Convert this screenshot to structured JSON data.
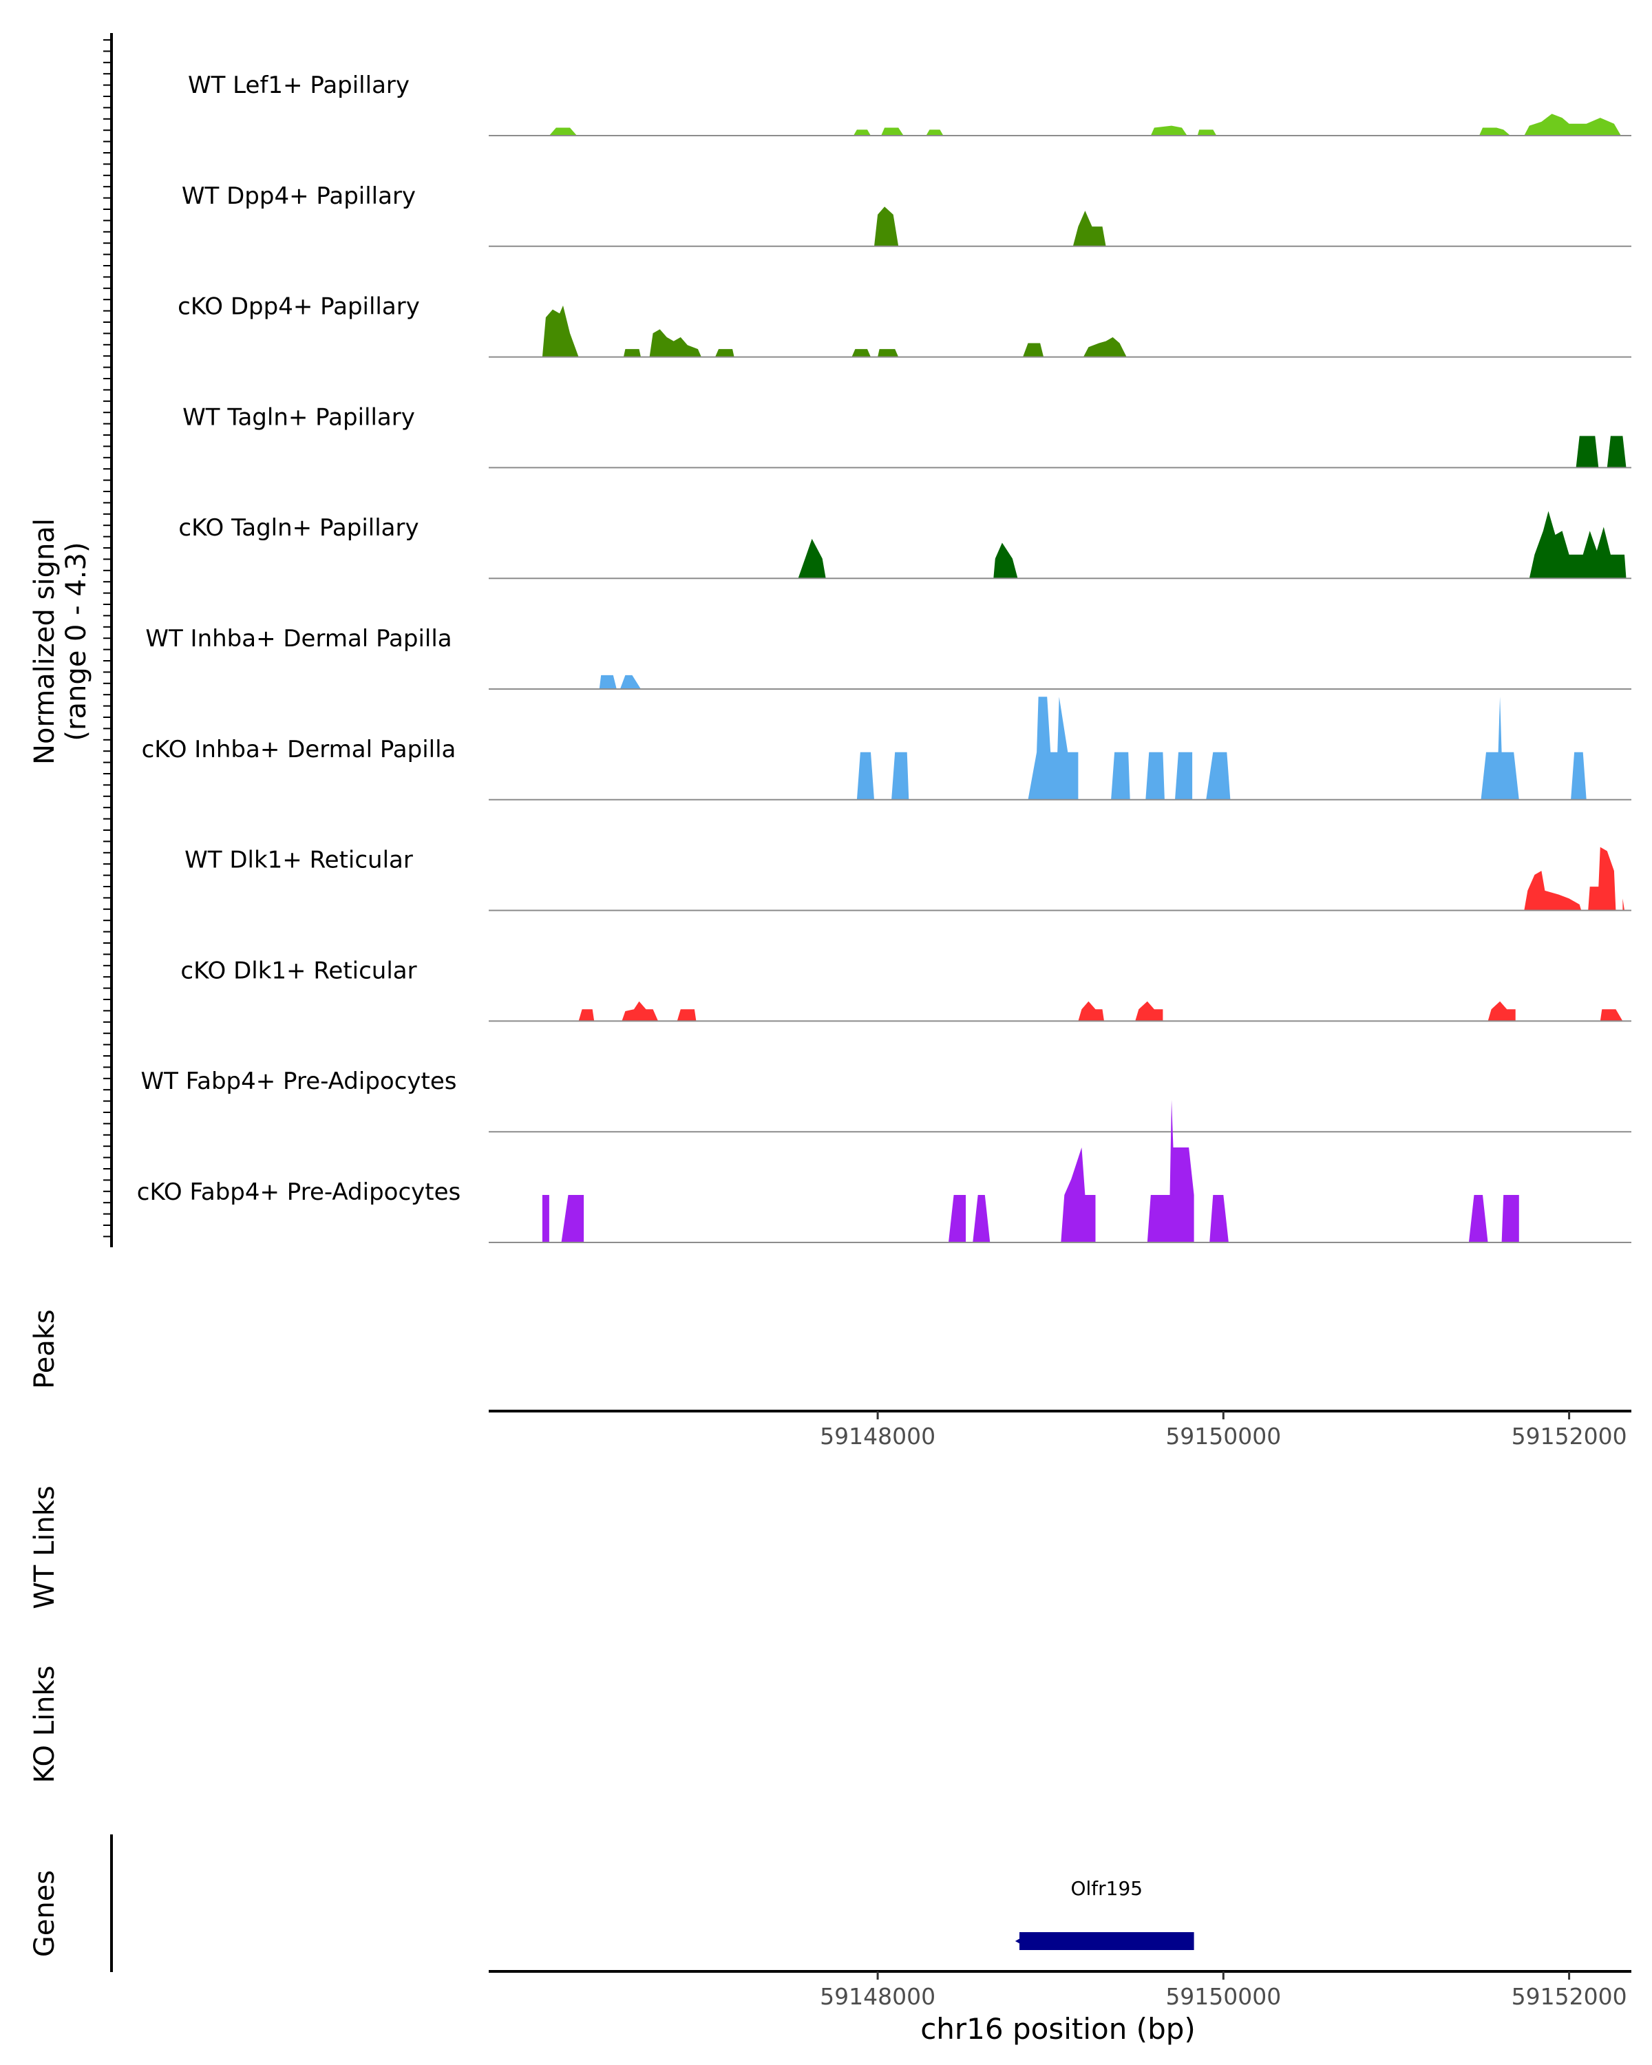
{
  "chart_data": {
    "type": "area",
    "title": "",
    "region": {
      "chrom": "chr16",
      "start": 59145750,
      "end": 59152360
    },
    "signal_axis": {
      "label_line1": "Normalized signal",
      "label_line2": "(range 0 - 4.3)",
      "ylim": [
        0,
        4.3
      ]
    },
    "x_ticks": [
      59148000,
      59150000,
      59152000
    ],
    "x_tick_labels": [
      "59148000",
      "59150000",
      "59152000"
    ],
    "xlabel": "chr16 position (bp)",
    "panel_labels": {
      "peaks": "Peaks",
      "wt_links": "WT Links",
      "ko_links": "KO Links",
      "genes": "Genes"
    },
    "genes": [
      {
        "name": "Olfr195",
        "start": 59148820,
        "end": 59149830,
        "strand": "-",
        "color": "#00008b"
      }
    ],
    "tracks": [
      {
        "name": "WT Lef1+ Papillary",
        "color": "#6fcb1c",
        "points": [
          [
            59146100,
            0
          ],
          [
            59146140,
            0.2
          ],
          [
            59146220,
            0.2
          ],
          [
            59146260,
            0
          ],
          [
            59147860,
            0
          ],
          [
            59147880,
            0.15
          ],
          [
            59147940,
            0.15
          ],
          [
            59147960,
            0
          ],
          [
            59148020,
            0
          ],
          [
            59148040,
            0.2
          ],
          [
            59148120,
            0.2
          ],
          [
            59148150,
            0
          ],
          [
            59148280,
            0
          ],
          [
            59148300,
            0.15
          ],
          [
            59148360,
            0.15
          ],
          [
            59148380,
            0
          ],
          [
            59149580,
            0
          ],
          [
            59149600,
            0.2
          ],
          [
            59149700,
            0.25
          ],
          [
            59149760,
            0.2
          ],
          [
            59149790,
            0
          ],
          [
            59149850,
            0
          ],
          [
            59149860,
            0.15
          ],
          [
            59149940,
            0.15
          ],
          [
            59149960,
            0
          ],
          [
            59151480,
            0
          ],
          [
            59151500,
            0.2
          ],
          [
            59151580,
            0.2
          ],
          [
            59151620,
            0.15
          ],
          [
            59151660,
            0
          ],
          [
            59151740,
            0
          ],
          [
            59151770,
            0.25
          ],
          [
            59151840,
            0.35
          ],
          [
            59151900,
            0.55
          ],
          [
            59151960,
            0.45
          ],
          [
            59152000,
            0.3
          ],
          [
            59152100,
            0.3
          ],
          [
            59152180,
            0.45
          ],
          [
            59152260,
            0.3
          ],
          [
            59152300,
            0
          ]
        ]
      },
      {
        "name": "WT Dpp4+ Papillary",
        "color": "#458b00",
        "points": [
          [
            59147980,
            0
          ],
          [
            59148000,
            0.8
          ],
          [
            59148040,
            1.0
          ],
          [
            59148090,
            0.8
          ],
          [
            59148120,
            0
          ],
          [
            59149130,
            0
          ],
          [
            59149160,
            0.5
          ],
          [
            59149200,
            0.9
          ],
          [
            59149240,
            0.5
          ],
          [
            59149300,
            0.5
          ],
          [
            59149320,
            0
          ]
        ]
      },
      {
        "name": "cKO Dpp4+ Papillary",
        "color": "#458b00",
        "points": [
          [
            59146060,
            0
          ],
          [
            59146080,
            1.0
          ],
          [
            59146120,
            1.2
          ],
          [
            59146160,
            1.1
          ],
          [
            59146180,
            1.3
          ],
          [
            59146220,
            0.6
          ],
          [
            59146270,
            0
          ],
          [
            59146530,
            0
          ],
          [
            59146540,
            0.2
          ],
          [
            59146620,
            0.2
          ],
          [
            59146630,
            0
          ],
          [
            59146680,
            0
          ],
          [
            59146700,
            0.6
          ],
          [
            59146740,
            0.7
          ],
          [
            59146780,
            0.5
          ],
          [
            59146820,
            0.4
          ],
          [
            59146860,
            0.5
          ],
          [
            59146900,
            0.3
          ],
          [
            59146960,
            0.2
          ],
          [
            59146980,
            0
          ],
          [
            59147060,
            0
          ],
          [
            59147080,
            0.2
          ],
          [
            59147160,
            0.2
          ],
          [
            59147170,
            0
          ],
          [
            59147850,
            0
          ],
          [
            59147870,
            0.2
          ],
          [
            59147940,
            0.2
          ],
          [
            59147960,
            0
          ],
          [
            59148000,
            0
          ],
          [
            59148010,
            0.2
          ],
          [
            59148100,
            0.2
          ],
          [
            59148120,
            0
          ],
          [
            59148840,
            0
          ],
          [
            59148870,
            0.35
          ],
          [
            59148940,
            0.35
          ],
          [
            59148960,
            0
          ],
          [
            59149190,
            0
          ],
          [
            59149220,
            0.25
          ],
          [
            59149280,
            0.35
          ],
          [
            59149320,
            0.4
          ],
          [
            59149360,
            0.5
          ],
          [
            59149400,
            0.35
          ],
          [
            59149440,
            0
          ]
        ]
      },
      {
        "name": "WT Tagln+ Papillary",
        "color": "#006400",
        "points": [
          [
            59152040,
            0
          ],
          [
            59152060,
            0.8
          ],
          [
            59152150,
            0.8
          ],
          [
            59152170,
            0
          ],
          [
            59152220,
            0
          ],
          [
            59152240,
            0.8
          ],
          [
            59152310,
            0.8
          ],
          [
            59152330,
            0
          ]
        ]
      },
      {
        "name": "cKO Tagln+ Papillary",
        "color": "#006400",
        "points": [
          [
            59147540,
            0
          ],
          [
            59147580,
            0.5
          ],
          [
            59147620,
            1.0
          ],
          [
            59147680,
            0.5
          ],
          [
            59147700,
            0
          ],
          [
            59148670,
            0
          ],
          [
            59148680,
            0.5
          ],
          [
            59148720,
            0.9
          ],
          [
            59148780,
            0.5
          ],
          [
            59148810,
            0
          ],
          [
            59151770,
            0
          ],
          [
            59151800,
            0.6
          ],
          [
            59151850,
            1.2
          ],
          [
            59151880,
            1.7
          ],
          [
            59151920,
            1.1
          ],
          [
            59151960,
            1.2
          ],
          [
            59152000,
            0.6
          ],
          [
            59152080,
            0.6
          ],
          [
            59152120,
            1.2
          ],
          [
            59152160,
            0.7
          ],
          [
            59152200,
            1.3
          ],
          [
            59152240,
            0.6
          ],
          [
            59152320,
            0.6
          ],
          [
            59152330,
            0
          ]
        ]
      },
      {
        "name": "WT Inhba+ Dermal Papilla",
        "color": "#5aabed",
        "points": [
          [
            59146390,
            0
          ],
          [
            59146400,
            0.35
          ],
          [
            59146470,
            0.35
          ],
          [
            59146490,
            0
          ],
          [
            59146510,
            0
          ],
          [
            59146540,
            0.35
          ],
          [
            59146580,
            0.35
          ],
          [
            59146630,
            0
          ]
        ]
      },
      {
        "name": "cKO Inhba+ Dermal Papilla",
        "color": "#5aabed",
        "points": [
          [
            59147880,
            0
          ],
          [
            59147900,
            1.2
          ],
          [
            59147960,
            1.2
          ],
          [
            59147980,
            0
          ],
          [
            59148080,
            0
          ],
          [
            59148100,
            1.2
          ],
          [
            59148170,
            1.2
          ],
          [
            59148180,
            0
          ],
          [
            59148870,
            0
          ],
          [
            59148920,
            1.2
          ],
          [
            59148930,
            2.6
          ],
          [
            59148980,
            2.6
          ],
          [
            59149000,
            1.2
          ],
          [
            59149040,
            1.2
          ],
          [
            59149050,
            2.6
          ],
          [
            59149100,
            1.2
          ],
          [
            59149160,
            1.2
          ],
          [
            59149160,
            0
          ],
          [
            59149350,
            0
          ],
          [
            59149370,
            1.2
          ],
          [
            59149450,
            1.2
          ],
          [
            59149460,
            0
          ],
          [
            59149550,
            0
          ],
          [
            59149570,
            1.2
          ],
          [
            59149650,
            1.2
          ],
          [
            59149660,
            0
          ],
          [
            59149720,
            0
          ],
          [
            59149740,
            1.2
          ],
          [
            59149820,
            1.2
          ],
          [
            59149820,
            0
          ],
          [
            59149900,
            0
          ],
          [
            59149940,
            1.2
          ],
          [
            59150020,
            1.2
          ],
          [
            59150040,
            0
          ],
          [
            59151490,
            0
          ],
          [
            59151520,
            1.2
          ],
          [
            59151590,
            1.2
          ],
          [
            59151600,
            2.6
          ],
          [
            59151610,
            1.2
          ],
          [
            59151680,
            1.2
          ],
          [
            59151710,
            0
          ],
          [
            59152010,
            0
          ],
          [
            59152030,
            1.2
          ],
          [
            59152080,
            1.2
          ],
          [
            59152100,
            0
          ]
        ]
      },
      {
        "name": "WT Dlk1+ Reticular",
        "color": "#ff3030",
        "points": [
          [
            59151740,
            0
          ],
          [
            59151760,
            0.5
          ],
          [
            59151800,
            0.9
          ],
          [
            59151840,
            1.0
          ],
          [
            59151860,
            0.5
          ],
          [
            59151940,
            0.4
          ],
          [
            59152000,
            0.3
          ],
          [
            59152060,
            0.15
          ],
          [
            59152070,
            0
          ],
          [
            59152110,
            0
          ],
          [
            59152120,
            0.6
          ],
          [
            59152170,
            0.6
          ],
          [
            59152180,
            1.6
          ],
          [
            59152220,
            1.5
          ],
          [
            59152260,
            1.0
          ],
          [
            59152270,
            0
          ],
          [
            59152310,
            0
          ],
          [
            59152310,
            0.3
          ],
          [
            59152320,
            0
          ]
        ]
      },
      {
        "name": "cKO Dlk1+ Reticular",
        "color": "#ff3030",
        "points": [
          [
            59146270,
            0
          ],
          [
            59146290,
            0.3
          ],
          [
            59146350,
            0.3
          ],
          [
            59146360,
            0
          ],
          [
            59146520,
            0
          ],
          [
            59146540,
            0.25
          ],
          [
            59146590,
            0.3
          ],
          [
            59146620,
            0.5
          ],
          [
            59146660,
            0.3
          ],
          [
            59146700,
            0.3
          ],
          [
            59146730,
            0
          ],
          [
            59146840,
            0
          ],
          [
            59146860,
            0.3
          ],
          [
            59146940,
            0.3
          ],
          [
            59146950,
            0
          ],
          [
            59149160,
            0
          ],
          [
            59149180,
            0.3
          ],
          [
            59149220,
            0.5
          ],
          [
            59149260,
            0.3
          ],
          [
            59149300,
            0.3
          ],
          [
            59149310,
            0
          ],
          [
            59149490,
            0
          ],
          [
            59149510,
            0.3
          ],
          [
            59149560,
            0.5
          ],
          [
            59149600,
            0.3
          ],
          [
            59149650,
            0.3
          ],
          [
            59149650,
            0
          ],
          [
            59151530,
            0
          ],
          [
            59151550,
            0.3
          ],
          [
            59151600,
            0.5
          ],
          [
            59151640,
            0.3
          ],
          [
            59151690,
            0.3
          ],
          [
            59151690,
            0
          ],
          [
            59152180,
            0
          ],
          [
            59152190,
            0.3
          ],
          [
            59152270,
            0.3
          ],
          [
            59152310,
            0
          ]
        ]
      },
      {
        "name": "WT Fabp4+ Pre-Adipocytes",
        "color": "#a020f0",
        "points": []
      },
      {
        "name": "cKO Fabp4+ Pre-Adipocytes",
        "color": "#a020f0",
        "points": [
          [
            59146060,
            0
          ],
          [
            59146060,
            1.2
          ],
          [
            59146100,
            1.2
          ],
          [
            59146100,
            0
          ],
          [
            59146170,
            0
          ],
          [
            59146210,
            1.2
          ],
          [
            59146300,
            1.2
          ],
          [
            59146300,
            0
          ],
          [
            59148410,
            0
          ],
          [
            59148440,
            1.2
          ],
          [
            59148510,
            1.2
          ],
          [
            59148510,
            0
          ],
          [
            59148550,
            0
          ],
          [
            59148580,
            1.2
          ],
          [
            59148620,
            1.2
          ],
          [
            59148650,
            0
          ],
          [
            59149060,
            0
          ],
          [
            59149080,
            1.2
          ],
          [
            59149120,
            1.6
          ],
          [
            59149180,
            2.4
          ],
          [
            59149200,
            1.2
          ],
          [
            59149260,
            1.2
          ],
          [
            59149260,
            0
          ],
          [
            59149560,
            0
          ],
          [
            59149580,
            1.2
          ],
          [
            59149690,
            1.2
          ],
          [
            59149700,
            3.6
          ],
          [
            59149710,
            2.4
          ],
          [
            59149800,
            2.4
          ],
          [
            59149830,
            1.2
          ],
          [
            59149830,
            0
          ],
          [
            59149920,
            0
          ],
          [
            59149940,
            1.2
          ],
          [
            59150000,
            1.2
          ],
          [
            59150030,
            0
          ],
          [
            59151420,
            0
          ],
          [
            59151450,
            1.2
          ],
          [
            59151500,
            1.2
          ],
          [
            59151530,
            0
          ],
          [
            59151610,
            0
          ],
          [
            59151620,
            1.2
          ],
          [
            59151710,
            1.2
          ],
          [
            59151710,
            0
          ]
        ]
      }
    ]
  }
}
